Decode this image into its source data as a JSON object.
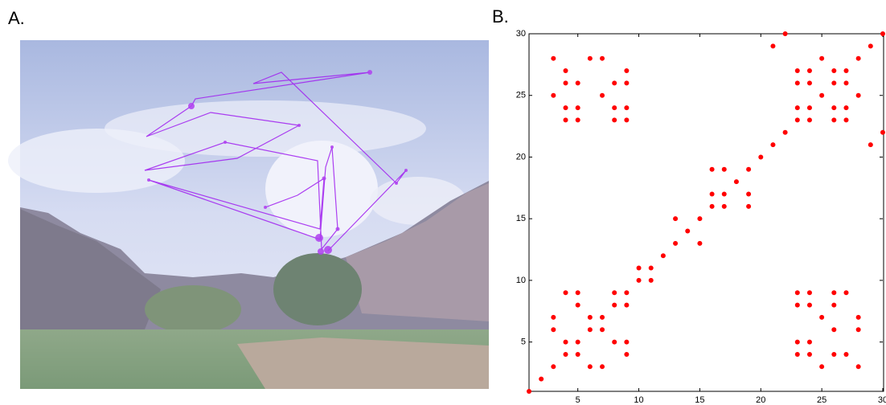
{
  "labels": [
    "A.",
    "B."
  ],
  "chart_data": {
    "type": "scatter",
    "color": "#ff0000",
    "x": [
      1,
      2,
      3,
      3,
      3,
      4,
      4,
      4,
      5,
      5,
      5,
      5,
      6,
      6,
      6,
      7,
      7,
      7,
      8,
      8,
      8,
      9,
      9,
      9,
      9,
      10,
      10,
      11,
      11,
      12,
      13,
      13,
      14,
      15,
      15,
      16,
      16,
      16,
      17,
      17,
      17,
      18,
      19,
      19,
      19,
      20,
      21,
      21,
      22,
      22,
      3,
      3,
      4,
      4,
      4,
      4,
      5,
      5,
      5,
      6,
      7,
      7,
      8,
      8,
      8,
      9,
      9,
      9,
      9,
      23,
      23,
      23,
      23,
      24,
      24,
      24,
      24,
      25,
      25,
      26,
      26,
      26,
      26,
      27,
      27,
      28,
      28,
      28,
      23,
      23,
      23,
      23,
      24,
      24,
      24,
      24,
      25,
      25,
      26,
      26,
      26,
      26,
      27,
      27,
      27,
      27,
      28,
      28,
      29,
      29,
      30,
      30
    ],
    "y": [
      1,
      2,
      3,
      6,
      7,
      4,
      5,
      9,
      4,
      5,
      8,
      9,
      3,
      6,
      7,
      3,
      6,
      7,
      5,
      8,
      9,
      4,
      5,
      8,
      9,
      10,
      11,
      10,
      11,
      12,
      13,
      15,
      14,
      13,
      15,
      16,
      17,
      19,
      16,
      17,
      19,
      18,
      16,
      17,
      19,
      20,
      21,
      29,
      22,
      30,
      25,
      28,
      23,
      24,
      26,
      27,
      23,
      24,
      26,
      28,
      25,
      28,
      23,
      24,
      26,
      23,
      24,
      26,
      27,
      4,
      5,
      8,
      9,
      4,
      5,
      8,
      9,
      3,
      7,
      4,
      6,
      8,
      9,
      4,
      9,
      3,
      6,
      7,
      23,
      24,
      26,
      27,
      23,
      24,
      26,
      27,
      25,
      28,
      23,
      24,
      26,
      27,
      23,
      24,
      26,
      27,
      25,
      28,
      21,
      29,
      22,
      30
    ],
    "xlim": [
      1,
      30
    ],
    "ylim": [
      1,
      30
    ],
    "xticks": [
      5,
      10,
      15,
      20,
      25,
      30
    ],
    "yticks": [
      5,
      10,
      15,
      20,
      25,
      30
    ]
  }
}
